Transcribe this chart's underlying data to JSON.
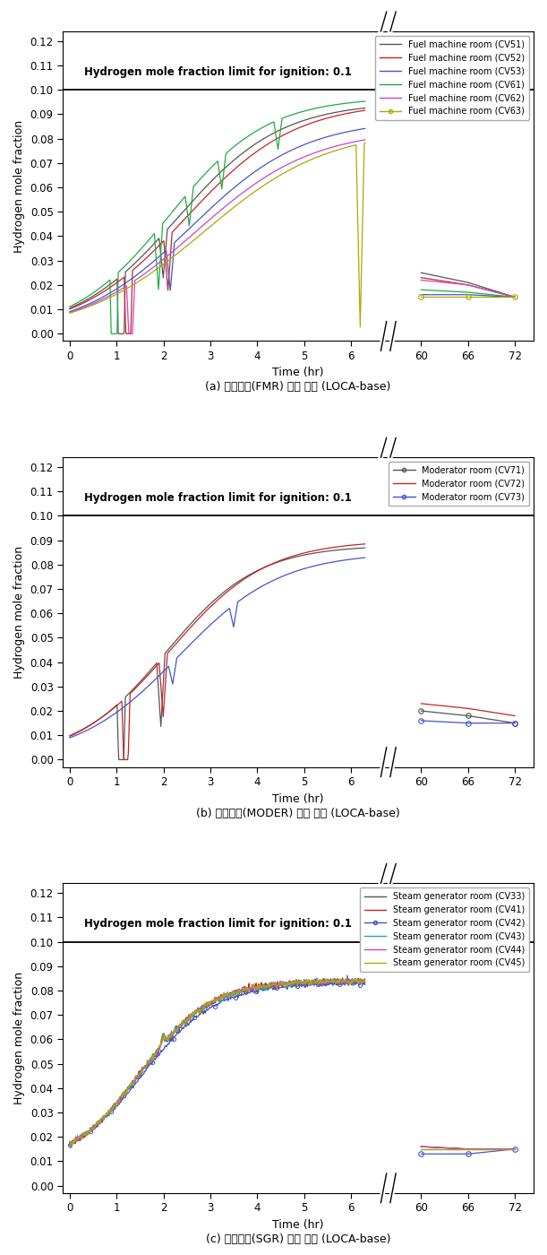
{
  "ylabel": "Hydrogen mole fraction",
  "xlabel": "Time (hr)",
  "ylim": [
    0.0,
    0.12
  ],
  "yticks": [
    0.0,
    0.01,
    0.02,
    0.03,
    0.04,
    0.05,
    0.06,
    0.07,
    0.08,
    0.09,
    0.1,
    0.11,
    0.12
  ],
  "ignition_limit": 0.1,
  "ignition_text": "Hydrogen mole fraction limit for ignition: 0.1",
  "subplot_a_caption": "(a) 격납건물(FMR) 수소 농도 (LOCA-base)",
  "subplot_b_caption": "(b) 격납건물(MODER) 수소 농도 (LOCA-base)",
  "subplot_c_caption": "(c) 격납건물(SGR) 수소 농도 (LOCA-base)",
  "subplot_a_labels": [
    "Fuel machine room (CV51)",
    "Fuel machine room (CV52)",
    "Fuel machine room (CV53)",
    "Fuel machine room (CV61)",
    "Fuel machine room (CV62)",
    "Fuel machine room (CV63)"
  ],
  "subplot_a_colors": [
    "#555555",
    "#cc2222",
    "#4455cc",
    "#22aa44",
    "#cc44cc",
    "#aaaa00"
  ],
  "subplot_b_labels": [
    "Moderator room (CV71)",
    "Moderator room (CV72)",
    "Moderator room (CV73)"
  ],
  "subplot_b_colors": [
    "#555555",
    "#cc2222",
    "#4455cc"
  ],
  "subplot_c_labels": [
    "Steam generator room (CV33)",
    "Steam generator room (CV41)",
    "Steam generator room (CV42)",
    "Steam generator room (CV43)",
    "Steam generator room (CV44)",
    "Steam generator room (CV45)"
  ],
  "subplot_c_colors": [
    "#555555",
    "#cc2222",
    "#4455cc",
    "#22aaaa",
    "#cc44cc",
    "#aaaa00"
  ],
  "background_color": "#ffffff",
  "figsize": [
    6.11,
    14.0
  ],
  "dpi": 100
}
